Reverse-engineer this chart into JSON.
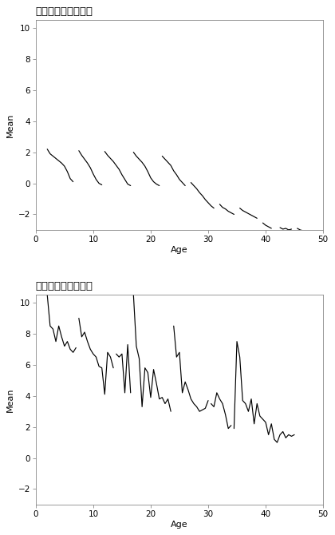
{
  "title1": "存続企業の支払金利",
  "title2": "破綻企業の支払金利",
  "xlabel": "Age",
  "ylabel": "Mean",
  "ylim": [
    -3.0,
    10.5
  ],
  "xlim": [
    0,
    50
  ],
  "yticks": [
    -2,
    0,
    2,
    4,
    6,
    8,
    10
  ],
  "xticks": [
    0,
    10,
    20,
    30,
    40,
    50
  ],
  "surviving_segments": [
    {
      "x": [
        2.0,
        2.5,
        3.0,
        3.5,
        4.0,
        4.5,
        5.0,
        5.5,
        6.0,
        6.5
      ],
      "y": [
        2.2,
        1.9,
        1.75,
        1.6,
        1.45,
        1.3,
        1.1,
        0.75,
        0.3,
        0.1
      ]
    },
    {
      "x": [
        7.5,
        8.0,
        8.5,
        9.0,
        9.5,
        10.0,
        10.5,
        11.0,
        11.5
      ],
      "y": [
        2.1,
        1.8,
        1.55,
        1.3,
        1.0,
        0.6,
        0.25,
        0.0,
        -0.1
      ]
    },
    {
      "x": [
        12.0,
        12.5,
        13.0,
        13.5,
        14.0,
        14.5,
        15.0,
        15.5,
        16.0,
        16.5
      ],
      "y": [
        2.05,
        1.8,
        1.6,
        1.4,
        1.15,
        0.9,
        0.55,
        0.25,
        -0.05,
        -0.15
      ]
    },
    {
      "x": [
        17.0,
        17.5,
        18.0,
        18.5,
        19.0,
        19.5,
        20.0,
        20.5,
        21.0,
        21.5
      ],
      "y": [
        2.0,
        1.75,
        1.55,
        1.35,
        1.1,
        0.75,
        0.35,
        0.1,
        -0.05,
        -0.15
      ]
    },
    {
      "x": [
        22.0,
        22.5,
        23.0,
        23.5,
        24.0,
        24.5,
        25.0,
        25.5,
        26.0
      ],
      "y": [
        1.75,
        1.55,
        1.35,
        1.15,
        0.8,
        0.55,
        0.25,
        0.05,
        -0.15
      ]
    },
    {
      "x": [
        27.0,
        27.5,
        28.0,
        28.5,
        29.0,
        29.5,
        30.0,
        30.5,
        31.0
      ],
      "y": [
        0.05,
        -0.15,
        -0.35,
        -0.6,
        -0.8,
        -1.05,
        -1.25,
        -1.45,
        -1.6
      ]
    },
    {
      "x": [
        32.0,
        32.5,
        33.0,
        33.5,
        34.0,
        34.5
      ],
      "y": [
        -1.35,
        -1.55,
        -1.65,
        -1.8,
        -1.9,
        -2.0
      ]
    },
    {
      "x": [
        35.5,
        36.0,
        36.5,
        37.0,
        37.5,
        38.0,
        38.5
      ],
      "y": [
        -1.6,
        -1.75,
        -1.85,
        -1.95,
        -2.05,
        -2.15,
        -2.25
      ]
    },
    {
      "x": [
        39.5,
        40.0,
        40.5,
        41.0
      ],
      "y": [
        -2.55,
        -2.7,
        -2.8,
        -2.9
      ]
    },
    {
      "x": [
        42.5,
        43.0,
        43.5,
        44.0,
        44.5
      ],
      "y": [
        -2.85,
        -2.95,
        -2.9,
        -3.0,
        -2.95
      ]
    },
    {
      "x": [
        45.5,
        46.0,
        46.5,
        47.0
      ],
      "y": [
        -2.9,
        -3.0,
        -3.05,
        -3.05
      ]
    }
  ],
  "bankrupt_x": [
    2.0,
    2.5,
    3.0,
    3.5,
    4.0,
    4.5,
    5.0,
    5.5,
    6.0,
    6.5,
    7.0,
    null,
    7.5,
    8.0,
    8.5,
    9.0,
    9.5,
    10.0,
    10.5,
    11.0,
    11.5,
    12.0,
    12.5,
    13.0,
    13.5,
    null,
    14.0,
    14.5,
    15.0,
    15.5,
    16.0,
    16.5,
    null,
    17.0,
    17.5,
    18.0,
    18.5,
    19.0,
    19.5,
    20.0,
    20.5,
    21.0,
    21.5,
    22.0,
    22.5,
    23.0,
    23.5,
    null,
    24.0,
    24.5,
    25.0,
    25.5,
    26.0,
    26.5,
    27.0,
    27.5,
    28.0,
    28.5,
    29.0,
    29.5,
    30.0,
    null,
    30.5,
    31.0,
    31.5,
    32.0,
    32.5,
    33.0,
    33.5,
    34.0,
    null,
    34.5,
    35.0,
    35.5,
    36.0,
    36.5,
    37.0,
    37.5,
    38.0,
    38.5,
    39.0,
    39.5,
    40.0,
    40.5,
    41.0,
    41.5,
    42.0,
    42.5,
    43.0,
    43.5,
    44.0,
    44.5,
    45.0
  ],
  "bankrupt_y": [
    10.5,
    8.5,
    8.3,
    7.5,
    8.5,
    7.8,
    7.2,
    7.5,
    7.0,
    6.8,
    7.1,
    null,
    9.0,
    7.8,
    8.1,
    7.5,
    7.0,
    6.7,
    6.5,
    5.9,
    5.8,
    4.1,
    6.8,
    6.5,
    5.8,
    null,
    6.7,
    6.5,
    6.7,
    4.2,
    7.3,
    4.2,
    null,
    10.5,
    7.2,
    6.4,
    3.3,
    5.8,
    5.5,
    3.9,
    5.7,
    4.8,
    3.8,
    3.9,
    3.5,
    3.8,
    3.0,
    null,
    8.5,
    6.5,
    6.8,
    4.2,
    4.9,
    4.4,
    3.8,
    3.5,
    3.3,
    3.0,
    3.1,
    3.2,
    3.7,
    null,
    3.5,
    3.3,
    4.2,
    3.8,
    3.5,
    2.8,
    1.9,
    2.1,
    null,
    1.9,
    7.5,
    6.5,
    3.7,
    3.5,
    3.0,
    3.8,
    2.2,
    3.5,
    2.7,
    2.5,
    2.3,
    1.5,
    2.2,
    1.2,
    1.0,
    1.5,
    1.7,
    1.3,
    1.5,
    1.4,
    1.5
  ]
}
